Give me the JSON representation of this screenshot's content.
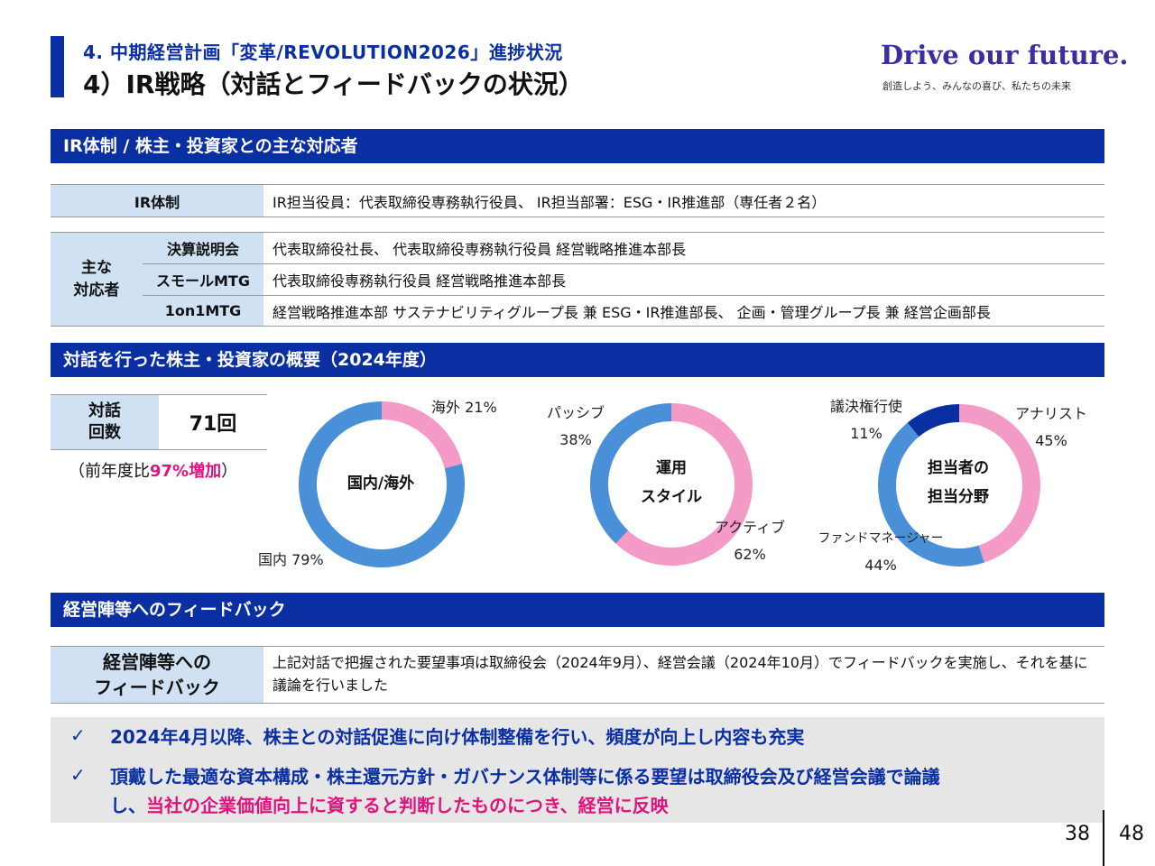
{
  "header": {
    "sup_title": "4. 中期経営計画「変革/REVOLUTION2026」進捗状況",
    "title": "4）IR戦略（対話とフィードバックの状況）",
    "brand": "Drive our future.",
    "brand_tagline": "創造しよう、みんなの喜び、私たちの未来"
  },
  "section1": {
    "title": "IR体制 / 株主・投資家との主な対応者",
    "ir_label": "IR体制",
    "ir_value": "IR担当役員：代表取締役専務執行役員、 IR担当部署：ESG・IR推進部（専任者２名）",
    "main_label_line1": "主な",
    "main_label_line2": "対応者",
    "rows": [
      {
        "label": "決算説明会",
        "value": "代表取締役社長、 代表取締役専務執行役員 経営戦略推進本部長"
      },
      {
        "label": "スモールMTG",
        "value": "代表取締役専務執行役員 経営戦略推進本部長"
      },
      {
        "label": "1on1MTG",
        "value": "経営戦略推進本部 サステナビリティグループ長 兼 ESG・IR推進部長、 企画・管理グループ長 兼 経営企画部長"
      }
    ]
  },
  "section2": {
    "title": "対話を行った株主・投資家の概要（2024年度）",
    "count_label_line1": "対話",
    "count_label_line2": "回数",
    "count_value": "71回",
    "yoy_prefix": "（前年度比",
    "yoy_highlight": "97%増加",
    "yoy_suffix": "）",
    "charts": [
      {
        "center_line1": "国内/海外",
        "center_line2": "",
        "labels": [
          {
            "name": "海外",
            "pct": "21%"
          },
          {
            "name": "国内",
            "pct": "79%"
          }
        ]
      },
      {
        "center_line1": "運用",
        "center_line2": "スタイル",
        "labels": [
          {
            "name": "パッシブ",
            "pct": "38%"
          },
          {
            "name": "アクティブ",
            "pct": "62%"
          }
        ]
      },
      {
        "center_line1": "担当者の",
        "center_line2": "担当分野",
        "labels": [
          {
            "name": "議決権行使",
            "pct": "11%"
          },
          {
            "name": "アナリスト",
            "pct": "45%"
          },
          {
            "name": "ファンドマネージャー",
            "pct": "44%"
          }
        ]
      }
    ]
  },
  "chart_data": [
    {
      "type": "pie",
      "categories": [
        "海外",
        "国内"
      ],
      "values": [
        21,
        79
      ],
      "colors": [
        "#f49ac7",
        "#4a90d9"
      ]
    },
    {
      "type": "pie",
      "categories": [
        "アクティブ",
        "パッシブ"
      ],
      "values": [
        62,
        38
      ],
      "colors": [
        "#f49ac7",
        "#4a90d9"
      ]
    },
    {
      "type": "pie",
      "categories": [
        "アナリスト",
        "ファンドマネージャー",
        "議決権行使"
      ],
      "values": [
        45,
        44,
        11
      ],
      "colors": [
        "#f49ac7",
        "#4a90d9",
        "#0a2fa3"
      ]
    }
  ],
  "section3": {
    "title": "経営陣等へのフィードバック",
    "label_line1": "経営陣等への",
    "label_line2": "フィードバック",
    "text": "上記対話で把握された要望事項は取締役会（2024年9月）、経営会議（2024年10月）でフィードバックを実施し、それを基に議論を行いました"
  },
  "summary": {
    "check": "✓",
    "item1": "2024年4月以降、株主との対話促進に向け体制整備を行い、頻度が向上し内容も充実",
    "item2_line1": "頂戴した最適な資本構成・株主還元方針・ガバナンス体制等に係る要望は取締役会及び経営会議で論議",
    "item2_line2_prefix": "し、",
    "item2_line2_highlight": "当社の企業価値向上に資すると判断したものにつき、経営に反映"
  },
  "page": {
    "current": "38",
    "total": "48"
  },
  "colors": {
    "navy": "#0a2fa3",
    "light_blue": "#cfe1f3",
    "pink": "#e0137c",
    "donut_blue": "#4a90d9",
    "donut_pink": "#f49ac7"
  }
}
